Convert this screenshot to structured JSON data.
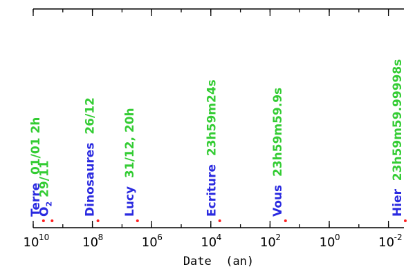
{
  "chart_data": {
    "type": "scatter",
    "xlabel": "Date  (an)",
    "xscale": "log",
    "xaxis_reversed": true,
    "xlim": [
      10000000000,
      0.003
    ],
    "ticks": [
      {
        "value": 10000000000,
        "base": "10",
        "exp": "10"
      },
      {
        "value": 100000000,
        "base": "10",
        "exp": "8"
      },
      {
        "value": 1000000,
        "base": "10",
        "exp": "6"
      },
      {
        "value": 10000,
        "base": "10",
        "exp": "4"
      },
      {
        "value": 100,
        "base": "10",
        "exp": "2"
      },
      {
        "value": 1,
        "base": "10",
        "exp": "0"
      },
      {
        "value": 0.01,
        "base": "10",
        "exp": "-2"
      }
    ],
    "colors": {
      "point": "#ff2020",
      "event": "#2a2ae0",
      "note": "#33cc33"
    },
    "points": [
      {
        "label": "Terre",
        "note": "01/01 2h",
        "x": 4500000000
      },
      {
        "label": "O",
        "sub": "2",
        "note": "29/11",
        "x": 2300000000
      },
      {
        "label": "Dinosaures",
        "note": "26/12",
        "x": 65000000
      },
      {
        "label": "Lucy",
        "note": "31/12, 20h",
        "x": 3000000
      },
      {
        "label": "Ecriture",
        "note": "23h59m24s",
        "x": 5000
      },
      {
        "label": "Vous",
        "note": "23h59m59.9s",
        "x": 30
      },
      {
        "label": "Hier",
        "note": "23h59m59.99998s",
        "x": 0.0027
      }
    ]
  }
}
